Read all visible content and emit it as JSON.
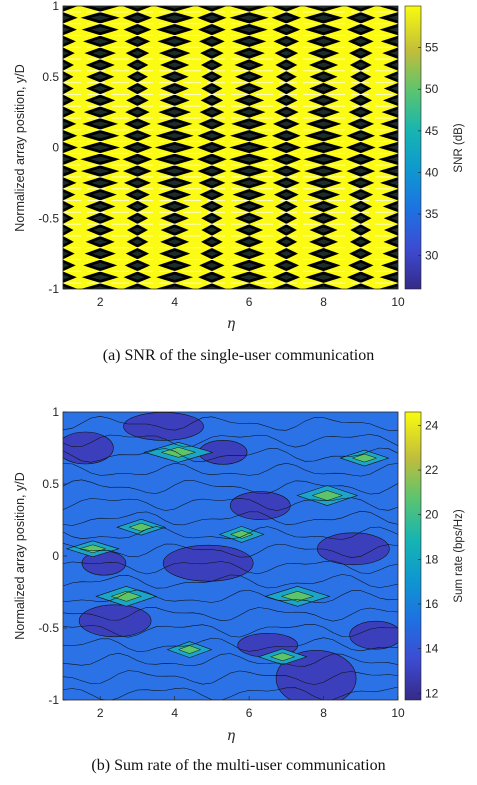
{
  "chart_data": [
    {
      "type": "heatmap",
      "caption": "(a) SNR of the single-user communication",
      "xlabel": "η",
      "ylabel": "Normalized array position, y/D",
      "colorbar_label": "SNR (dB)",
      "xlim": [
        1,
        10
      ],
      "ylim": [
        -1,
        1
      ],
      "xticks": [
        "2",
        "4",
        "6",
        "8",
        "10"
      ],
      "yticks": [
        "-1",
        "-0.5",
        "0",
        "0.5",
        "1"
      ],
      "colorbar_range": [
        26,
        60
      ],
      "colorbar_ticks": [
        "30",
        "35",
        "40",
        "45",
        "50",
        "55"
      ],
      "colormap": "parula",
      "colors": {
        "low": "#3e26a8",
        "mid": "#17b9b8",
        "high": "#f9fb15"
      },
      "description": "Diamond/lattice pattern: bright yellow peaks separated by dark minima, forming about 20 horizontal bands across y and diamond columns at even and odd η."
    },
    {
      "type": "heatmap",
      "caption": "(b) Sum rate of the multi-user communication",
      "xlabel": "η",
      "ylabel": "Normalized array position, y/D",
      "colorbar_label": "Sum rate (bps/Hz)",
      "xlim": [
        1,
        10
      ],
      "ylim": [
        -1,
        1
      ],
      "xticks": [
        "2",
        "4",
        "6",
        "8",
        "10"
      ],
      "yticks": [
        "-1",
        "-0.5",
        "0",
        "0.5",
        "1"
      ],
      "colorbar_range": [
        11.7,
        24.6
      ],
      "colorbar_ticks": [
        "12",
        "14",
        "16",
        "18",
        "20",
        "22",
        "24"
      ],
      "colormap": "parula",
      "colors": {
        "low": "#3e26a8",
        "mid": "#2f86f0",
        "high": "#f9fb15"
      },
      "description": "Mostly blue field (14–16 bps/Hz) with contour lines; scattered cyan/green diamond peaks up to about 24 bps/Hz and darker indigo regions near 12 bps/Hz."
    }
  ]
}
